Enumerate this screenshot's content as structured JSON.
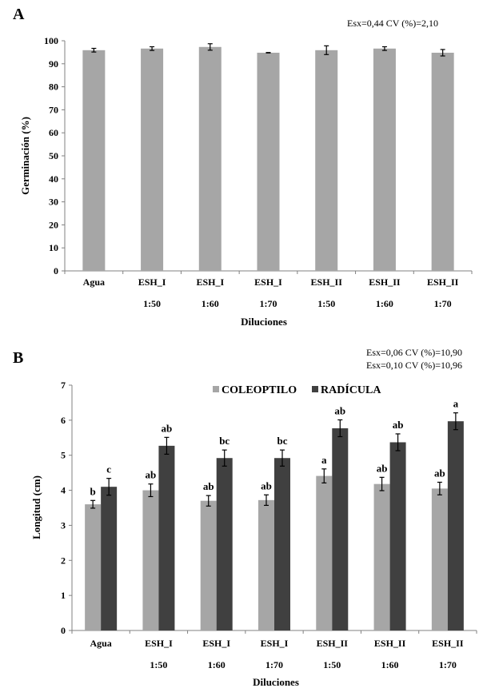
{
  "chart_data": [
    {
      "panel": "A",
      "type": "bar",
      "stats_note": "Esx=0,44   CV (%)=2,10",
      "categories": [
        [
          "Agua",
          ""
        ],
        [
          "ESH_I",
          "1:50"
        ],
        [
          "ESH_I",
          "1:60"
        ],
        [
          "ESH_I",
          "1:70"
        ],
        [
          "ESH_II",
          "1:50"
        ],
        [
          "ESH_II",
          "1:60"
        ],
        [
          "ESH_II",
          "1:70"
        ]
      ],
      "values": [
        95.9,
        96.6,
        97.3,
        94.8,
        95.9,
        96.6,
        94.8
      ],
      "errors": [
        0.8,
        0.8,
        1.4,
        0.1,
        1.9,
        0.8,
        1.4
      ],
      "xlabel": "Diluciones",
      "ylabel": "Germinación (%)",
      "ylim": [
        0,
        100
      ],
      "yticks": [
        0,
        10,
        20,
        30,
        40,
        50,
        60,
        70,
        80,
        90,
        100
      ],
      "grid": false,
      "color": "#a6a6a6"
    },
    {
      "panel": "B",
      "type": "bar",
      "stats_note": [
        "Esx=0,06   CV (%)=10,90",
        "Esx=0,10   CV (%)=10,96"
      ],
      "categories": [
        [
          "Agua",
          ""
        ],
        [
          "ESH_I",
          "1:50"
        ],
        [
          "ESH_I",
          "1:60"
        ],
        [
          "ESH_I",
          "1:70"
        ],
        [
          "ESH_II",
          "1:50"
        ],
        [
          "ESH_II",
          "1:60"
        ],
        [
          "ESH_II",
          "1:70"
        ]
      ],
      "series": [
        {
          "name": "COLEOPTILO",
          "color": "#a6a6a6",
          "values": [
            3.6,
            4.0,
            3.7,
            3.72,
            4.41,
            4.18,
            4.05
          ],
          "errors": [
            0.11,
            0.18,
            0.15,
            0.15,
            0.2,
            0.19,
            0.18
          ],
          "letters": [
            "b",
            "ab",
            "ab",
            "ab",
            "a",
            "ab",
            "ab"
          ]
        },
        {
          "name": "RADÍCULA",
          "color": "#404040",
          "values": [
            4.1,
            5.27,
            4.92,
            4.92,
            5.77,
            5.37,
            5.97
          ],
          "errors": [
            0.24,
            0.24,
            0.23,
            0.23,
            0.24,
            0.24,
            0.24
          ],
          "letters": [
            "c",
            "ab",
            "bc",
            "bc",
            "ab",
            "ab",
            "a"
          ]
        }
      ],
      "xlabel": "Diluciones",
      "ylabel": "Longitud  (cm)",
      "ylim": [
        0,
        7
      ],
      "yticks": [
        0,
        1,
        2,
        3,
        4,
        5,
        6,
        7
      ],
      "grid": false,
      "legend": "top-center"
    }
  ]
}
